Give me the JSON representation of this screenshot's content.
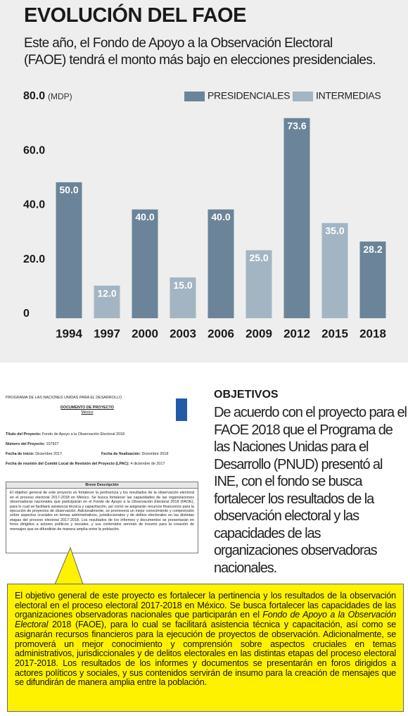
{
  "chart_data": {
    "type": "bar",
    "title": "EVOLUCIÓN DEL FAOE",
    "subtitle": "Este año, el Fondo de Apoyo a la Observación Electoral (FAOE) tendrá el monto más bajo en elecciones presidenciales.",
    "y_unit": "(MDP)",
    "categories": [
      "1994",
      "1997",
      "2000",
      "2003",
      "2006",
      "2009",
      "2012",
      "2015",
      "2018"
    ],
    "series": [
      {
        "name": "PRESIDENCIALES",
        "color": "#6b8499",
        "values": [
          50,
          null,
          40,
          null,
          40,
          null,
          73.6,
          null,
          28.2
        ],
        "value_labels": [
          "50.0",
          null,
          "40.0",
          null,
          "40.0",
          null,
          "73.6",
          null,
          "28.2"
        ]
      },
      {
        "name": "INTERMEDIAS",
        "color": "#a3b5c3",
        "values": [
          null,
          12,
          null,
          15,
          null,
          25,
          null,
          35,
          null
        ],
        "value_labels": [
          null,
          "12.0",
          null,
          "15.0",
          null,
          "25.0",
          null,
          "35.0",
          null
        ]
      }
    ],
    "ylim": [
      0,
      80
    ],
    "yticks": [
      0,
      {
        "value": 20,
        "label": "20.0"
      },
      {
        "value": 40,
        "label": "40.0"
      },
      {
        "value": 60,
        "label": "60.0"
      },
      {
        "value": 80,
        "label": "80.0"
      }
    ],
    "grid": false,
    "legend": "top-right"
  },
  "document_image": {
    "organization": "PROGRAMA DE LAS NACIONES UNIDAS PARA EL DESARROLLO",
    "doc_title": "DOCUMENTO DE PROYECTO",
    "country": "México",
    "fields": [
      {
        "label": "Título del Proyecto:",
        "value": "Fondo de Apoyo a la Observación Electoral 2018"
      },
      {
        "label": "Número del Proyecto:",
        "value": "107927"
      },
      {
        "label": "Fecha de inicio:",
        "value": "Diciembre 2017"
      },
      {
        "label": "Fecha de finalización:",
        "value": "Diciembre 2018"
      },
      {
        "label": "Fecha de reunión del Comité Local de Revisión del Proyecto (LPAC):",
        "value": "4 diciembre de 2017"
      }
    ],
    "box_title": "Breve Descripción",
    "description": {
      "before": "El objetivo general de este proyecto es fortalecer la pertinencia y los resultados de la observación electoral en el proceso electoral 2017-2018 en México. Se busca fortalecer las capacidades de las organizaciones observadoras nacionales que participarán en el ",
      "italic": "Fondo de Apoyo a la Observación Electoral",
      "after": " 2018 (FAOE), para lo cual se facilitará asistencia técnica y capacitación, así como se asignarán recursos financieros para la ejecución de proyectos de observación. Adicionalmente, se promoverá un mejor conocimiento y comprensión sobre aspectos cruciales en temas administrativos, jurisdiccionales y de delitos electorales en las distintas etapas del proceso electoral 2017-2018. Los resultados de los informes y documentos se presentarán en foros dirigidos a actores políticos y sociales, y sus contenidos servirán de insumo para la creación de mensajes que se difundirán de manera amplia entre la población."
    }
  },
  "objectives": {
    "heading": "OBJETIVOS",
    "text": "De acuerdo con el proyecto para el FAOE 2018 que el Programa de las Naciones Unidas para el Desarrollo (PNUD) presentó al INE, con el fondo se busca fortalecer los resultados de la observación electoral y las capacidades de las organizaciones observadoras nacionales."
  }
}
